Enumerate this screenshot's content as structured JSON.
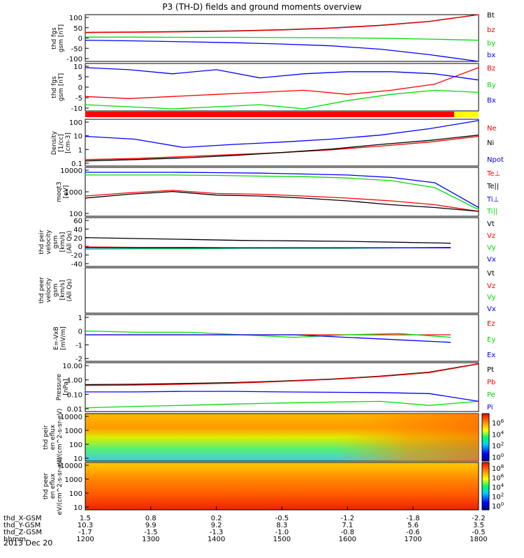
{
  "title": "P3 (TH-D) fields and ground moments overview",
  "date_label": "2013 Dec 20",
  "colors": {
    "black": "#000000",
    "red": "#ff0000",
    "green": "#00dd00",
    "blue": "#0000ff",
    "yellow": "#ffff00"
  },
  "x_axis": {
    "row_labels": [
      "thd_X-GSM",
      "thd_Y-GSM",
      "thd_Z-GSM",
      "hhmm"
    ],
    "ticks": [
      {
        "x": "1.5",
        "y": "10.3",
        "z": "-1.7",
        "hhmm": "1200"
      },
      {
        "x": "0.8",
        "y": "9.9",
        "z": "-1.5",
        "hhmm": "1300"
      },
      {
        "x": "0.2",
        "y": "9.2",
        "z": "-1.3",
        "hhmm": "1400"
      },
      {
        "x": "-0.5",
        "y": "8.3",
        "z": "-1.0",
        "hhmm": "1500"
      },
      {
        "x": "-1.2",
        "y": "7.1",
        "z": "-0.8",
        "hhmm": "1600"
      },
      {
        "x": "-1.8",
        "y": "5.6",
        "z": "-0.6",
        "hhmm": "1700"
      },
      {
        "x": "-2.2",
        "y": "3.5",
        "z": "-0.5",
        "hhmm": "1800"
      }
    ]
  },
  "chart_data": [
    {
      "type": "line",
      "ylabel": "thd fgs gsm [nT]",
      "yticks": [
        "100",
        "50",
        "0",
        "-50",
        "-100"
      ],
      "ylim": [
        -100,
        110
      ],
      "time_range": [
        "1200",
        "1800"
      ],
      "series": [
        {
          "name": "Bt",
          "color": "black",
          "values": [
            30,
            32,
            34,
            37,
            42,
            50,
            62,
            80,
            110
          ]
        },
        {
          "name": "bz",
          "color": "red",
          "values": [
            29,
            31,
            33,
            36,
            41,
            49,
            61,
            79,
            110
          ]
        },
        {
          "name": "by",
          "color": "green",
          "values": [
            9,
            9,
            8,
            8,
            7,
            6,
            4,
            0,
            -5
          ]
        },
        {
          "name": "bx",
          "color": "blue",
          "values": [
            -5,
            -8,
            -12,
            -16,
            -22,
            -30,
            -45,
            -70,
            -100
          ]
        }
      ]
    },
    {
      "type": "line",
      "ylabel": "thd fgs gsm [nT]",
      "yticks": [
        "10",
        "5",
        "0",
        "-5",
        "-10"
      ],
      "ylim": [
        -13,
        10
      ],
      "time_range": [
        "1200",
        "1800"
      ],
      "series": [
        {
          "name": "Bz",
          "color": "red",
          "values": [
            -6,
            -7,
            -6,
            -5,
            -4,
            -3,
            -5,
            -3,
            0,
            8
          ]
        },
        {
          "name": "By",
          "color": "green",
          "values": [
            -10,
            -11,
            -12,
            -11,
            -10,
            -12,
            -8,
            -5,
            -3,
            -4
          ]
        },
        {
          "name": "Bx",
          "color": "blue",
          "values": [
            8,
            7,
            5,
            7,
            3,
            5,
            6,
            6,
            5,
            2
          ]
        }
      ]
    },
    {
      "type": "line",
      "ylabel": "Density [1/cc] [cm-3]",
      "yticks": [
        "100",
        "10",
        "1",
        "0.1"
      ],
      "scale": "log",
      "ylim": [
        0.05,
        150
      ],
      "time_range": [
        "1200",
        "1800"
      ],
      "series": [
        {
          "name": "Ne",
          "color": "red",
          "values": [
            0.15,
            0.18,
            0.25,
            0.35,
            0.5,
            0.8,
            1.5,
            3,
            8
          ]
        },
        {
          "name": "Ni",
          "color": "black",
          "values": [
            0.12,
            0.15,
            0.2,
            0.3,
            0.5,
            0.9,
            2,
            4,
            10
          ]
        },
        {
          "name": "Npot",
          "color": "blue",
          "values": [
            8,
            5,
            1.2,
            2,
            3,
            5,
            10,
            30,
            120
          ]
        }
      ]
    },
    {
      "type": "line",
      "ylabel": "moqt3 [eV]",
      "yticks": [
        "10000",
        "1000",
        "100"
      ],
      "scale": "log",
      "ylim": [
        60,
        10000
      ],
      "time_range": [
        "1200",
        "1800"
      ],
      "series": [
        {
          "name": "Te⊥",
          "color": "red",
          "values": [
            500,
            700,
            900,
            650,
            600,
            500,
            400,
            300,
            200,
            100
          ]
        },
        {
          "name": "Te||",
          "color": "black",
          "values": [
            400,
            600,
            800,
            550,
            500,
            400,
            300,
            200,
            150,
            100
          ]
        },
        {
          "name": "Ti⊥",
          "color": "blue",
          "values": [
            6000,
            6000,
            6000,
            5800,
            5500,
            5000,
            4500,
            3500,
            2000,
            150
          ]
        },
        {
          "name": "Ti||",
          "color": "green",
          "values": [
            4500,
            4500,
            4500,
            4300,
            4000,
            3800,
            3300,
            2500,
            1200,
            120
          ]
        }
      ]
    },
    {
      "type": "line",
      "ylabel": "thd peir velocity gsm [km/s] (All Qs)",
      "yticks": [
        "60",
        "40",
        "20",
        "0",
        "-20",
        "-40"
      ],
      "ylim": [
        -40,
        65
      ],
      "time_range": [
        "1200",
        "1800"
      ],
      "series": [
        {
          "name": "Vt",
          "color": "black",
          "values": [
            22,
            20,
            18,
            16,
            15,
            14,
            12,
            10
          ]
        },
        {
          "name": "Vz",
          "color": "red",
          "values": [
            2,
            1,
            1,
            0,
            0,
            0,
            0,
            1
          ]
        },
        {
          "name": "Vy",
          "color": "green",
          "values": [
            -3,
            -2,
            -2,
            -1,
            -1,
            -1,
            0,
            0
          ]
        },
        {
          "name": "Vx",
          "color": "blue",
          "values": [
            0,
            0,
            0,
            0,
            0,
            0,
            0,
            0
          ]
        }
      ]
    },
    {
      "type": "line",
      "ylabel": "thd peer velocity gsm [km/s] (All Qs)",
      "yticks": [],
      "series": [
        {
          "name": "Vt",
          "color": "black",
          "values": []
        },
        {
          "name": "Vz",
          "color": "red",
          "values": []
        },
        {
          "name": "Vy",
          "color": "green",
          "values": []
        },
        {
          "name": "Vx",
          "color": "blue",
          "values": []
        }
      ]
    },
    {
      "type": "line",
      "ylabel": "E=-VxB [mV/m]",
      "yticks": [
        "1",
        "0",
        "-1",
        "-2"
      ],
      "ylim": [
        -2.1,
        1.6
      ],
      "time_range": [
        "1200",
        "1800"
      ],
      "series": [
        {
          "name": "Ez",
          "color": "red",
          "values": [
            0,
            0,
            0,
            0,
            0,
            0,
            0,
            0
          ]
        },
        {
          "name": "Ey",
          "color": "green",
          "values": [
            0.3,
            0.2,
            0.2,
            0,
            -0.2,
            0,
            0.1,
            -0.2
          ]
        },
        {
          "name": "Ex",
          "color": "blue",
          "values": [
            0,
            0,
            0,
            0,
            0,
            -0.2,
            -0.4,
            -0.6
          ]
        }
      ]
    },
    {
      "type": "line",
      "ylabel": "Pressure [nPa]",
      "yticks": [
        "10.00",
        "1.00",
        "0.10",
        "0.01"
      ],
      "scale": "log",
      "ylim": [
        0.007,
        30
      ],
      "time_range": [
        "1200",
        "1800"
      ],
      "series": [
        {
          "name": "Pt",
          "color": "black",
          "values": [
            0.7,
            0.75,
            0.85,
            1,
            1.3,
            1.8,
            3,
            6,
            25
          ]
        },
        {
          "name": "Pb",
          "color": "red",
          "values": [
            0.6,
            0.65,
            0.75,
            0.9,
            1.2,
            1.7,
            2.8,
            5.5,
            24
          ]
        },
        {
          "name": "Pe",
          "color": "green",
          "values": [
            0.013,
            0.017,
            0.02,
            0.025,
            0.03,
            0.035,
            0.04,
            0.02,
            0.04
          ]
        },
        {
          "name": "Pi",
          "color": "blue",
          "values": [
            0.2,
            0.2,
            0.22,
            0.22,
            0.2,
            0.19,
            0.18,
            0.15,
            0.04
          ]
        }
      ]
    },
    {
      "type": "heatmap",
      "ylabel": "thd peir en eflux eV/(cm^2-s-sr-eV)",
      "yticks": [
        "10000",
        "1000",
        "100",
        "10"
      ]
    },
    {
      "type": "heatmap",
      "ylabel": "thd peer en eflux eV/(cm^2-s-sr-eV)",
      "yticks": [
        "10000",
        "1000",
        "100",
        "10"
      ]
    }
  ],
  "colorbars": [
    {
      "ticks": [
        "10^6",
        "10^4",
        "10^2",
        "10^0"
      ]
    },
    {
      "ticks": [
        "10^8",
        "10^6",
        "10^4",
        "10^2",
        "10^0"
      ]
    }
  ]
}
